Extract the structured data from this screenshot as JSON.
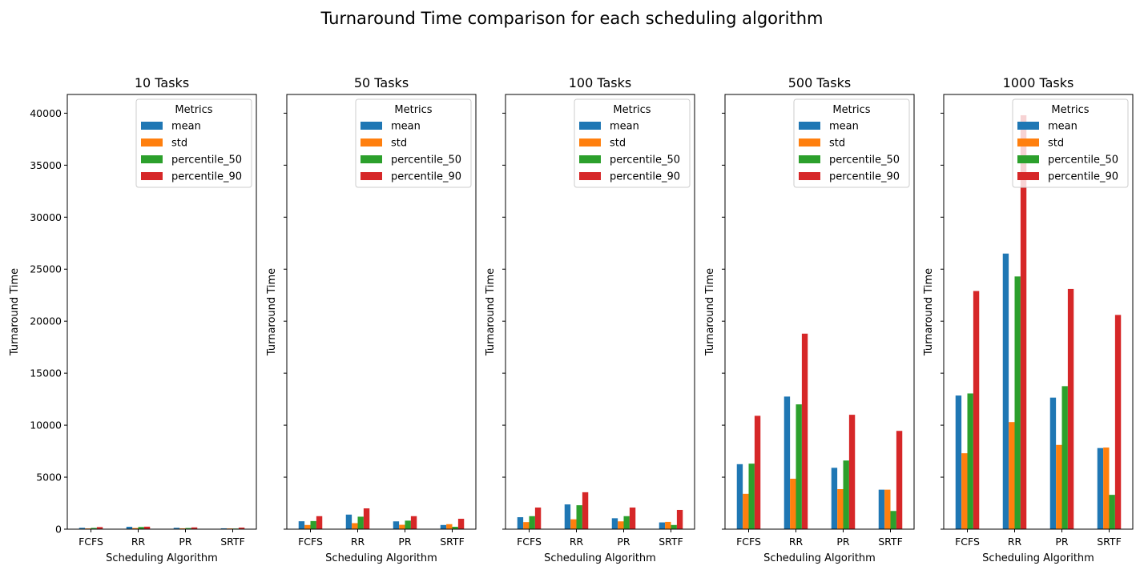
{
  "chart_data": {
    "type": "bar",
    "title": "Turnaround Time comparison for each scheduling algorithm",
    "xlabel": "Scheduling Algorithm",
    "ylabel": "Turnaround Time",
    "categories": [
      "FCFS",
      "RR",
      "PR",
      "SRTF"
    ],
    "ylim": [
      0,
      41800
    ],
    "yticks": [
      0,
      5000,
      10000,
      15000,
      20000,
      25000,
      30000,
      35000,
      40000
    ],
    "grid": false,
    "legend": {
      "title": "Metrics",
      "placement": "upper right"
    },
    "colors": [
      "#1f77b4",
      "#ff7f0e",
      "#2ca02c",
      "#d62728"
    ],
    "panels": [
      {
        "title": "10 Tasks",
        "series": [
          {
            "name": "mean",
            "values": [
              130,
              230,
              130,
              80
            ]
          },
          {
            "name": "std",
            "values": [
              70,
              110,
              80,
              70
            ]
          },
          {
            "name": "percentile_50",
            "values": [
              120,
              210,
              110,
              60
            ]
          },
          {
            "name": "percentile_90",
            "values": [
              200,
              240,
              170,
              150
            ]
          }
        ]
      },
      {
        "title": "50 Tasks",
        "series": [
          {
            "name": "mean",
            "values": [
              760,
              1400,
              750,
              400
            ]
          },
          {
            "name": "std",
            "values": [
              400,
              580,
              420,
              480
            ]
          },
          {
            "name": "percentile_50",
            "values": [
              780,
              1200,
              820,
              230
            ]
          },
          {
            "name": "percentile_90",
            "values": [
              1250,
              2000,
              1250,
              1000
            ]
          }
        ]
      },
      {
        "title": "100 Tasks",
        "series": [
          {
            "name": "mean",
            "values": [
              1150,
              2380,
              1050,
              650
            ]
          },
          {
            "name": "std",
            "values": [
              680,
              950,
              750,
              700
            ]
          },
          {
            "name": "percentile_50",
            "values": [
              1250,
              2300,
              1250,
              400
            ]
          },
          {
            "name": "percentile_90",
            "values": [
              2080,
              3550,
              2080,
              1850
            ]
          }
        ]
      },
      {
        "title": "500 Tasks",
        "series": [
          {
            "name": "mean",
            "values": [
              6250,
              12750,
              5900,
              3800
            ]
          },
          {
            "name": "std",
            "values": [
              3400,
              4850,
              3850,
              3800
            ]
          },
          {
            "name": "percentile_50",
            "values": [
              6300,
              12000,
              6600,
              1750
            ]
          },
          {
            "name": "percentile_90",
            "values": [
              10900,
              18800,
              11000,
              9450
            ]
          }
        ]
      },
      {
        "title": "1000 Tasks",
        "series": [
          {
            "name": "mean",
            "values": [
              12850,
              26500,
              12650,
              7800
            ]
          },
          {
            "name": "std",
            "values": [
              7300,
              10300,
              8100,
              7850
            ]
          },
          {
            "name": "percentile_50",
            "values": [
              13050,
              24300,
              13750,
              3300
            ]
          },
          {
            "name": "percentile_90",
            "values": [
              22900,
              39800,
              23100,
              20600
            ]
          }
        ]
      }
    ]
  }
}
